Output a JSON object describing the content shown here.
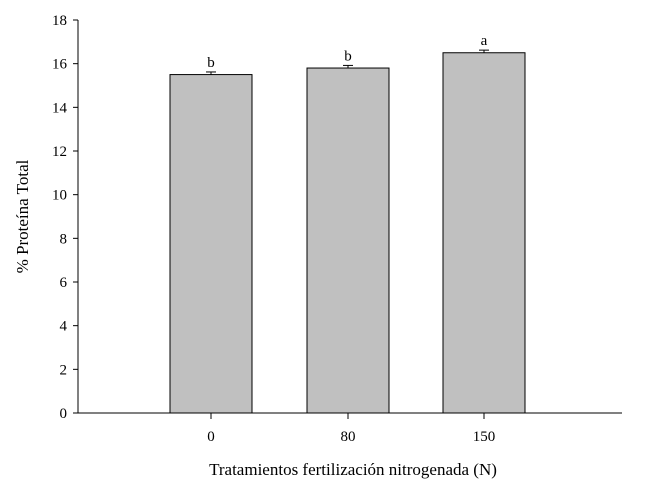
{
  "chart_data": {
    "type": "bar",
    "categories": [
      "0",
      "80",
      "150"
    ],
    "values": [
      15.5,
      15.8,
      16.5
    ],
    "errors": [
      0.12,
      0.12,
      0.12
    ],
    "significance_letters": [
      "b",
      "b",
      "a"
    ],
    "xlabel": "Tratamientos fertilización nitrogenada (N)",
    "ylabel": "% Proteína Total",
    "ylim": [
      0,
      18
    ],
    "yticks": [
      0,
      2,
      4,
      6,
      8,
      10,
      12,
      14,
      16,
      18
    ],
    "grid": false,
    "bar_color": "#c0c0c0",
    "bar_edge_color": "#000000"
  }
}
